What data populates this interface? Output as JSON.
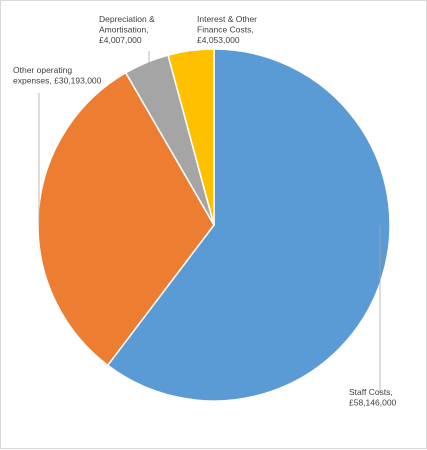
{
  "chart_data": {
    "type": "pie",
    "title": "",
    "start_angle_deg": 0,
    "direction": "clockwise",
    "series": [
      {
        "slices": [
          {
            "label_lines": [
              "Staff Costs,",
              "£58,146,000"
            ],
            "category": "Staff Costs",
            "value": 58146000,
            "color": "#5b9bd5"
          },
          {
            "label_lines": [
              "Other operating",
              "expenses, £30,193,000"
            ],
            "category": "Other operating expenses",
            "value": 30193000,
            "color": "#ed7d31"
          },
          {
            "label_lines": [
              "Depreciation &",
              "Amortisation,",
              "£4,007,000"
            ],
            "category": "Depreciation & Amortisation",
            "value": 4007000,
            "color": "#a5a5a5"
          },
          {
            "label_lines": [
              "Interest & Other",
              "Finance Costs,",
              "£4,053,000"
            ],
            "category": "Interest & Other Finance Costs",
            "value": 4053000,
            "color": "#ffc000"
          }
        ]
      }
    ],
    "legend": "none",
    "data_labels": "outside-with-leader-lines"
  }
}
